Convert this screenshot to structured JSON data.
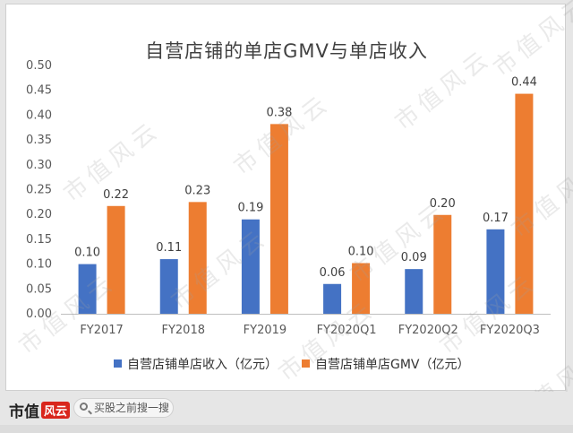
{
  "chart_data": {
    "type": "bar",
    "title": "自营店铺的单店GMV与单店收入",
    "categories": [
      "FY2017",
      "FY2018",
      "FY2019",
      "FY2020Q1",
      "FY2020Q2",
      "FY2020Q3"
    ],
    "series": [
      {
        "name": "自营店铺单店收入（亿元）",
        "color": "#4472c4",
        "values": [
          0.1,
          0.11,
          0.19,
          0.06,
          0.09,
          0.17
        ],
        "labels": [
          "0.10",
          "0.11",
          "0.19",
          "0.06",
          "0.09",
          "0.17"
        ]
      },
      {
        "name": "自营店铺单店GMV（亿元）",
        "color": "#ed7d31",
        "values": [
          0.217,
          0.225,
          0.382,
          0.102,
          0.199,
          0.443
        ],
        "labels": [
          "0.22",
          "0.23",
          "0.38",
          "0.10",
          "0.20",
          "0.44"
        ]
      }
    ],
    "ylim": [
      0,
      0.5
    ],
    "yticks": [
      "0.00",
      "0.05",
      "0.10",
      "0.15",
      "0.20",
      "0.25",
      "0.30",
      "0.35",
      "0.40",
      "0.45",
      "0.50"
    ],
    "grid": false,
    "legend": "bottom"
  },
  "watermark": "市值风云",
  "footer": {
    "logo_text": "市值",
    "logo_badge": "风云",
    "search_placeholder": "买股之前搜一搜"
  }
}
